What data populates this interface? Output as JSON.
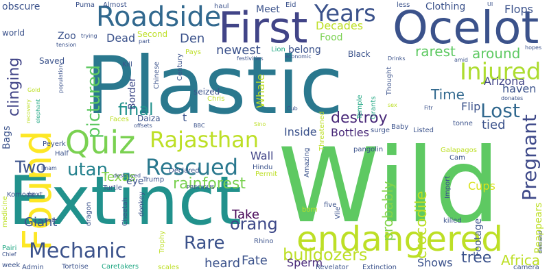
{
  "words": [
    {
      "text": "Plastic",
      "color": "#2a788e"
    },
    {
      "text": "Wild",
      "color": "#5ec962"
    },
    {
      "text": "Extinct",
      "color": "#21918c"
    },
    {
      "text": "Ocelot",
      "color": "#3b528b"
    },
    {
      "text": "First",
      "color": "#414487"
    },
    {
      "text": "Found",
      "color": "#fde725"
    },
    {
      "text": "endangered",
      "color": "#bddf26"
    },
    {
      "text": "Roadside",
      "color": "#31688e"
    },
    {
      "text": "Quiz",
      "color": "#7ad151"
    },
    {
      "text": "Rajasthan",
      "color": "#bddf26"
    },
    {
      "text": "Years",
      "color": "#3b528b"
    },
    {
      "text": "Injured",
      "color": "#addc30"
    },
    {
      "text": "Rescued",
      "color": "#2a788e"
    },
    {
      "text": "Mechanic",
      "color": "#3b528b"
    },
    {
      "text": "Pregnant",
      "color": "#3e4989"
    },
    {
      "text": "Lost",
      "color": "#31688e"
    },
    {
      "text": "pictured",
      "color": "#5ec962"
    },
    {
      "text": "clinging",
      "color": "#414487"
    },
    {
      "text": "Two",
      "color": "#3b528b"
    },
    {
      "text": "utan",
      "color": "#26828e"
    },
    {
      "text": "rainforest",
      "color": "#7ad151"
    },
    {
      "text": "orang",
      "color": "#3e4989"
    },
    {
      "text": "Rare",
      "color": "#3b528b"
    },
    {
      "text": "bulldozers",
      "color": "#bddf26"
    },
    {
      "text": "crocodile",
      "color": "#bddf26"
    },
    {
      "text": "probably",
      "color": "#84d44b"
    },
    {
      "text": "final",
      "color": "#21918c"
    },
    {
      "text": "Den",
      "color": "#3b528b"
    },
    {
      "text": "newest",
      "color": "#3b528b"
    },
    {
      "text": "rarest",
      "color": "#5ec962"
    },
    {
      "text": "around",
      "color": "#5ec962"
    },
    {
      "text": "Decades",
      "color": "#bddf26"
    },
    {
      "text": "Time",
      "color": "#31688e"
    },
    {
      "text": "Flip",
      "color": "#3b528b"
    },
    {
      "text": "tied",
      "color": "#3b528b"
    },
    {
      "text": "destroy",
      "color": "#482878"
    },
    {
      "text": "Bottles",
      "color": "#482878"
    },
    {
      "text": "Inside",
      "color": "#3b528b"
    },
    {
      "text": "Wall",
      "color": "#414487"
    },
    {
      "text": "Texas",
      "color": "#86d549"
    },
    {
      "text": "Giant",
      "color": "#3b528b"
    },
    {
      "text": "Take",
      "color": "#440154"
    },
    {
      "text": "Fate",
      "color": "#3b528b"
    },
    {
      "text": "Sperm",
      "color": "#482878"
    },
    {
      "text": "heard",
      "color": "#3b528b"
    },
    {
      "text": "tree",
      "color": "#3b528b"
    },
    {
      "text": "Africa",
      "color": "#bddf26"
    },
    {
      "text": "Shows",
      "color": "#3b528b"
    },
    {
      "text": "Footage",
      "color": "#3b528b"
    },
    {
      "text": "Reappears",
      "color": "#bddf26"
    },
    {
      "text": "Cups",
      "color": "#d8e219"
    },
    {
      "text": "haven",
      "color": "#3b528b"
    },
    {
      "text": "Arizona",
      "color": "#414487"
    },
    {
      "text": "Border",
      "color": "#3e4989"
    },
    {
      "text": "Dead",
      "color": "#3b528b"
    },
    {
      "text": "Second",
      "color": "#bddf26"
    },
    {
      "text": "Zoo",
      "color": "#3b528b"
    },
    {
      "text": "obscure",
      "color": "#3b528b"
    },
    {
      "text": "Meet",
      "color": "#3b528b"
    },
    {
      "text": "Clothing",
      "color": "#3b528b"
    },
    {
      "text": "Flops",
      "color": "#3b528b"
    },
    {
      "text": "Food",
      "color": "#7ad151"
    },
    {
      "text": "belong",
      "color": "#3b528b"
    },
    {
      "text": "Black",
      "color": "#3b528b"
    },
    {
      "text": "Lion",
      "color": "#22a884"
    },
    {
      "text": "Almost",
      "color": "#3b528b"
    },
    {
      "text": "Puma",
      "color": "#3b528b"
    },
    {
      "text": "haul",
      "color": "#3b528b"
    },
    {
      "text": "Eid",
      "color": "#3b528b"
    },
    {
      "text": "less",
      "color": "#3b528b"
    },
    {
      "text": "world",
      "color": "#3b528b"
    },
    {
      "text": "Bags",
      "color": "#3b528b"
    },
    {
      "text": "Saved",
      "color": "#3b528b"
    },
    {
      "text": "Kill",
      "color": "#3b528b"
    },
    {
      "text": "Whale",
      "color": "#bddf26"
    },
    {
      "text": "seized",
      "color": "#3b528b"
    },
    {
      "text": "Chris",
      "color": "#bddf26"
    },
    {
      "text": "Pays",
      "color": "#bddf26"
    },
    {
      "text": "Chinese",
      "color": "#3b528b"
    },
    {
      "text": "Century",
      "color": "#3b528b"
    },
    {
      "text": "Faces",
      "color": "#bddf26"
    },
    {
      "text": "Daiza",
      "color": "#3b528b"
    },
    {
      "text": "eye",
      "color": "#3b528b"
    },
    {
      "text": "Half",
      "color": "#3b528b"
    },
    {
      "text": "Peyerk",
      "color": "#3b528b"
    },
    {
      "text": "Hindu",
      "color": "#3b528b"
    },
    {
      "text": "Permit",
      "color": "#bddf26"
    },
    {
      "text": "Trump",
      "color": "#3b528b"
    },
    {
      "text": "Turtle",
      "color": "#3b528b"
    },
    {
      "text": "Komodo",
      "color": "#3b528b"
    },
    {
      "text": "Rhino",
      "color": "#3b528b"
    },
    {
      "text": "Pairi",
      "color": "#22a884"
    },
    {
      "text": "Tortoise",
      "color": "#3b528b"
    },
    {
      "text": "Caretakers",
      "color": "#22a884"
    },
    {
      "text": "Admin",
      "color": "#3b528b"
    },
    {
      "text": "week",
      "color": "#3b528b"
    },
    {
      "text": "scales",
      "color": "#bddf26"
    },
    {
      "text": "Listed",
      "color": "#3b528b"
    },
    {
      "text": "Baby",
      "color": "#3b528b"
    },
    {
      "text": "Galapagos",
      "color": "#bddf26"
    },
    {
      "text": "pangolin",
      "color": "#3b528b"
    },
    {
      "text": "Import",
      "color": "#3b528b"
    },
    {
      "text": "Cam",
      "color": "#3b528b"
    },
    {
      "text": "five",
      "color": "#3b528b"
    },
    {
      "text": "born",
      "color": "#bddf26"
    },
    {
      "text": "killed",
      "color": "#3b528b"
    },
    {
      "text": "Revelator",
      "color": "#3b528b"
    },
    {
      "text": "Extinction",
      "color": "#3b528b"
    },
    {
      "text": "camera",
      "color": "#3b528b"
    },
    {
      "text": "Vile",
      "color": "#3b528b"
    },
    {
      "text": "dragon",
      "color": "#3b528b"
    },
    {
      "text": "Cheetah",
      "color": "#3b528b"
    },
    {
      "text": "Trophy",
      "color": "#bddf26"
    },
    {
      "text": "medicine",
      "color": "#bddf26"
    },
    {
      "text": "donkey",
      "color": "#3b528b"
    },
    {
      "text": "next",
      "color": "#3b528b"
    },
    {
      "text": "Amazing",
      "color": "#3b528b"
    },
    {
      "text": "Declared",
      "color": "#3b528b"
    },
    {
      "text": "PRECIOUS",
      "color": "#3b528b"
    },
    {
      "text": "destroyed",
      "color": "#3b528b"
    },
    {
      "text": "Imam",
      "color": "#3b528b"
    },
    {
      "text": "Threatened",
      "color": "#bddf26"
    },
    {
      "text": "Grants",
      "color": "#22a884"
    },
    {
      "text": "Temple",
      "color": "#22a884"
    },
    {
      "text": "Thought",
      "color": "#3b528b"
    },
    {
      "text": "donates",
      "color": "#3b528b"
    },
    {
      "text": "tonne",
      "color": "#3b528b"
    },
    {
      "text": "surge",
      "color": "#3b528b"
    },
    {
      "text": "Cub",
      "color": "#3b528b"
    },
    {
      "text": "sex",
      "color": "#bddf26"
    },
    {
      "text": "Fitr",
      "color": "#3b528b"
    },
    {
      "text": "amid",
      "color": "#3b528b"
    },
    {
      "text": "Drinks",
      "color": "#3b528b"
    },
    {
      "text": "economic",
      "color": "#3b528b"
    },
    {
      "text": "festivities",
      "color": "#3b528b"
    },
    {
      "text": "hopes",
      "color": "#3b528b"
    },
    {
      "text": "part",
      "color": "#3b528b"
    },
    {
      "text": "trying",
      "color": "#3b528b"
    },
    {
      "text": "tension",
      "color": "#3b528b"
    },
    {
      "text": "population",
      "color": "#3b528b"
    },
    {
      "text": "recovery",
      "color": "#bddf26"
    },
    {
      "text": "elephant",
      "color": "#22a884"
    },
    {
      "text": "Gold",
      "color": "#bddf26"
    },
    {
      "text": "offsets",
      "color": "#3b528b"
    },
    {
      "text": "BBC",
      "color": "#3b528b"
    },
    {
      "text": "Sino",
      "color": "#bddf26"
    },
    {
      "text": "Chief",
      "color": "#3b528b"
    },
    {
      "text": "flat",
      "color": "#3b528b"
    },
    {
      "text": "demand",
      "color": "#3b528b"
    },
    {
      "text": "UI",
      "color": "#3b528b"
    },
    {
      "text": "t",
      "color": "#3b528b"
    }
  ]
}
